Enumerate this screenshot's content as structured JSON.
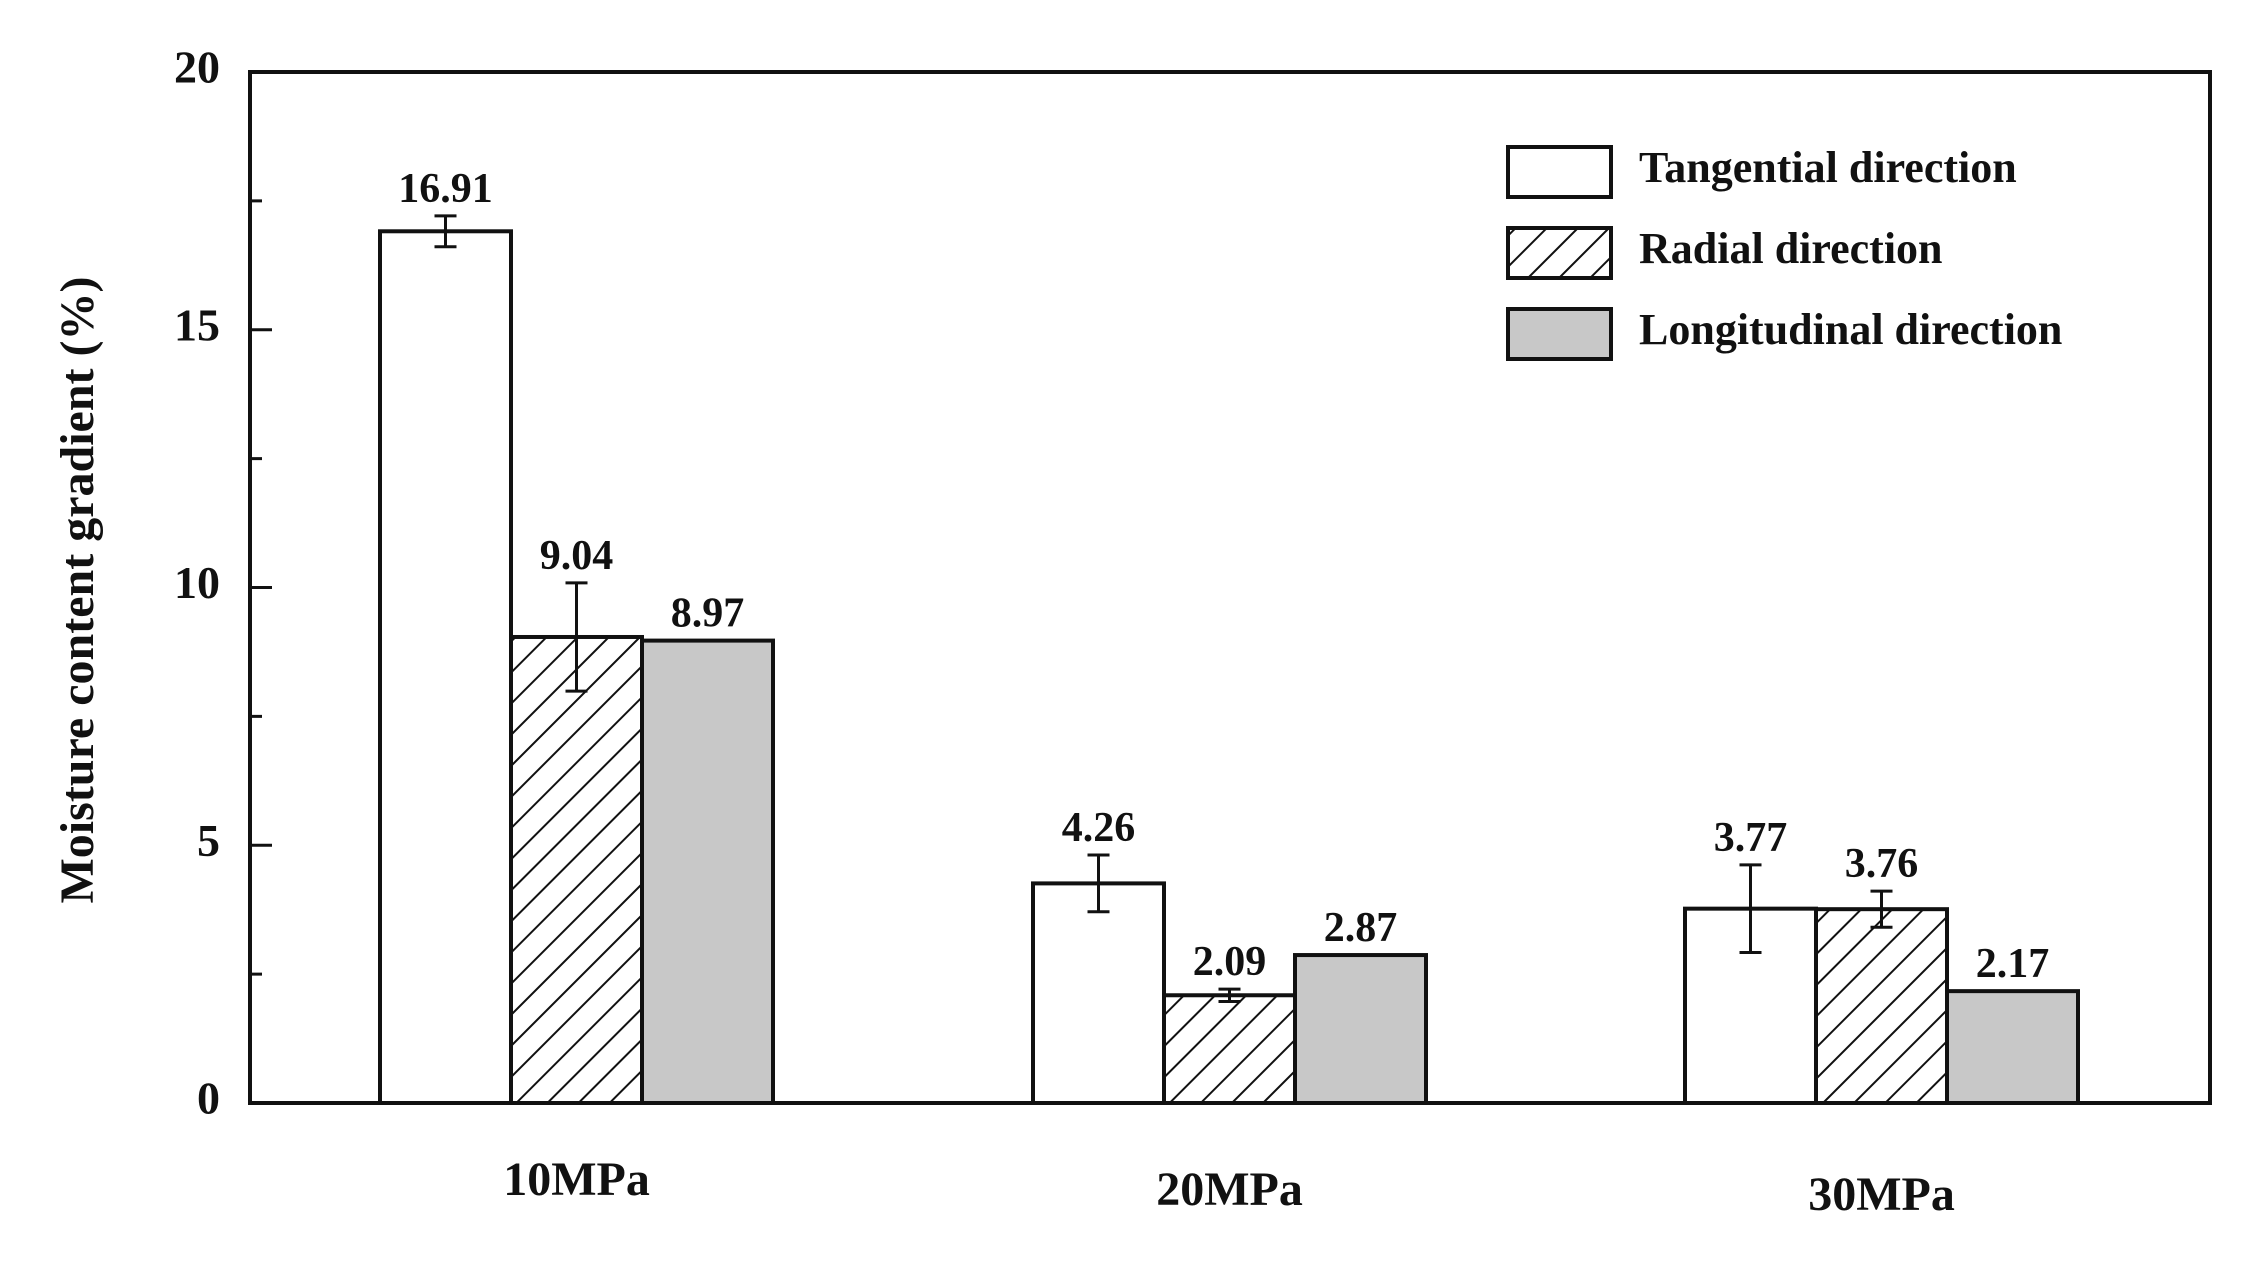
{
  "chart_data": {
    "type": "bar",
    "title": "",
    "xlabel": "",
    "ylabel": "Moisture content gradient (%)",
    "ylim": [
      0,
      20
    ],
    "yticks": [
      0,
      5,
      10,
      15,
      20
    ],
    "yticks_labels": [
      "0",
      "5",
      "10",
      "15",
      "20"
    ],
    "categories": [
      "10MPa",
      "20MPa",
      "30MPa"
    ],
    "series": [
      {
        "name": "Tangential direction",
        "fill": "white",
        "values": [
          16.91,
          4.26,
          3.77
        ],
        "labels": [
          "16.91",
          "4.26",
          "3.77"
        ],
        "errors": [
          0.3,
          0.55,
          0.85
        ]
      },
      {
        "name": "Radial direction",
        "fill": "hatch",
        "values": [
          9.04,
          2.09,
          3.76
        ],
        "labels": [
          "9.04",
          "2.09",
          "3.76"
        ],
        "errors": [
          1.05,
          0.12,
          0.35
        ]
      },
      {
        "name": "Longitudinal direction",
        "fill": "gray",
        "values": [
          8.97,
          2.87,
          2.17
        ],
        "labels": [
          "8.97",
          "2.87",
          "2.17"
        ],
        "errors": [
          0,
          0,
          0
        ]
      }
    ],
    "legend_position": "top-right",
    "grid": false,
    "colors": {
      "frame": "#111111",
      "gray_fill": "#c8c8c8",
      "white_fill": "#ffffff"
    }
  }
}
